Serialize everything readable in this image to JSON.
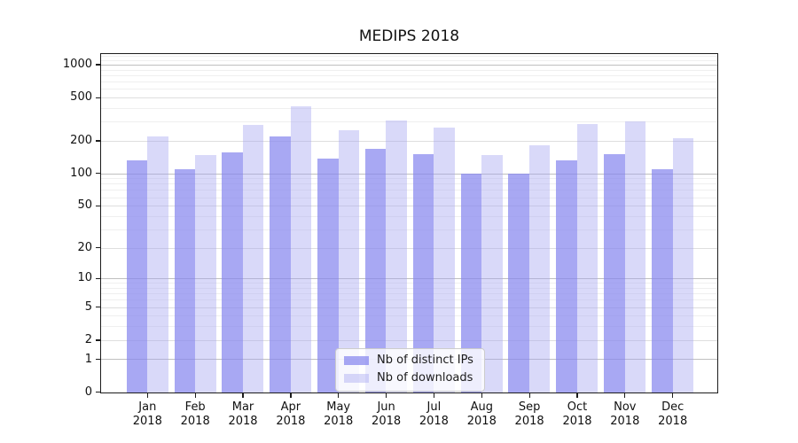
{
  "chart_data": {
    "type": "bar",
    "title": "MEDIPS 2018",
    "categories": [
      "Jan",
      "Feb",
      "Mar",
      "Apr",
      "May",
      "Jun",
      "Jul",
      "Aug",
      "Sep",
      "Oct",
      "Nov",
      "Dec"
    ],
    "year_label": "2018",
    "series": [
      {
        "name": "Nb of distinct IPs",
        "color": "rgba(134,134,239,0.72)",
        "color_hex_on_white": "#a8a8f3",
        "values": [
          134,
          111,
          158,
          222,
          138,
          170,
          151,
          100,
          100,
          134,
          152,
          111
        ]
      },
      {
        "name": "Nb of downloads",
        "color": "rgba(164,164,240,0.42)",
        "color_hex_on_white": "#d9d9f8",
        "values": [
          222,
          149,
          283,
          418,
          252,
          308,
          266,
          150,
          183,
          287,
          305,
          214
        ]
      }
    ],
    "xlabel": "",
    "ylabel": "",
    "yscale": "log10(1+y)",
    "ylim": [
      0,
      1300
    ],
    "yticks_labeled": [
      0,
      1,
      2,
      5,
      10,
      20,
      50,
      100,
      200,
      500,
      1000
    ],
    "yticks_decade": [
      1,
      10,
      100,
      1000
    ],
    "yticks_minor": [
      3,
      4,
      6,
      7,
      8,
      9,
      30,
      40,
      60,
      70,
      80,
      90,
      300,
      400,
      600,
      700,
      800,
      900,
      1100,
      1200
    ],
    "grid": true,
    "legend_position": "inside bottom-center"
  }
}
